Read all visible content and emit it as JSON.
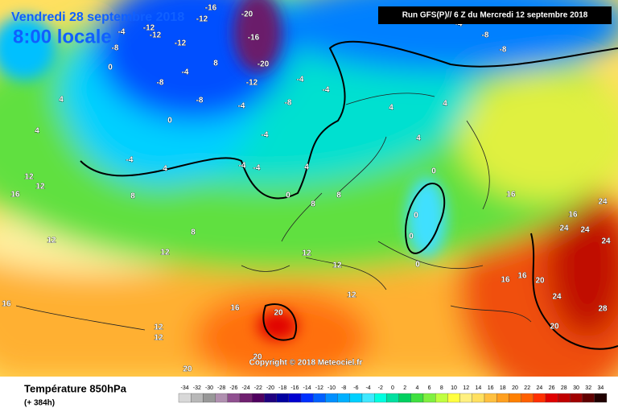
{
  "header": {
    "date": "Vendredi 28 septembre 2018",
    "time": "8:00 locale",
    "run": "Run GFS(P)// 6 Z du Mercredi 12 septembre 2018"
  },
  "map": {
    "copyright": "Copyright © 2018 Meteociel.fr",
    "labels": [
      "-16",
      "-20",
      "-12",
      "-12",
      "-4",
      "-12",
      "-12",
      "-8",
      "8",
      "0",
      "-4",
      "-16",
      "-20",
      "-12",
      "-8",
      "-4",
      "-8",
      "-4",
      "4",
      "-8",
      "-4",
      "0",
      "-4",
      "4",
      "-4",
      "4",
      "-4",
      "-4",
      "0",
      "4",
      "8",
      "4",
      "4",
      "4",
      "0",
      "0",
      "0",
      "0",
      "8",
      "12",
      "12",
      "16",
      "8",
      "8",
      "12",
      "12",
      "12",
      "12",
      "12",
      "16",
      "20",
      "16",
      "16",
      "20",
      "24",
      "24",
      "24",
      "24",
      "24",
      "28",
      "20",
      "16",
      "16",
      "12",
      "12",
      "16",
      "20",
      "20",
      "-8",
      "-8",
      "-4"
    ]
  },
  "footer": {
    "title": "Température 850hPa",
    "lead": "(+ 384h)"
  },
  "scale": {
    "values": [
      -34,
      -32,
      -30,
      -28,
      -26,
      -24,
      -22,
      -20,
      -18,
      -16,
      -14,
      -12,
      -10,
      -8,
      -6,
      -4,
      -2,
      0,
      2,
      4,
      6,
      8,
      10,
      12,
      14,
      16,
      18,
      20,
      22,
      24,
      26,
      28,
      30,
      32,
      34
    ],
    "colors": [
      "#d8d8d8",
      "#b8b8b8",
      "#989898",
      "#b090b0",
      "#905090",
      "#702070",
      "#500060",
      "#200080",
      "#0000a0",
      "#0000d0",
      "#0030ff",
      "#0060ff",
      "#0090ff",
      "#00b0ff",
      "#00d0ff",
      "#40e8ff",
      "#00ffe0",
      "#00e0a0",
      "#00d060",
      "#40e040",
      "#80f040",
      "#c0ff40",
      "#ffff40",
      "#fff080",
      "#ffe060",
      "#ffc040",
      "#ffa020",
      "#ff8000",
      "#ff6000",
      "#ff3000",
      "#e00000",
      "#c00000",
      "#a00000",
      "#600000",
      "#200000"
    ]
  }
}
